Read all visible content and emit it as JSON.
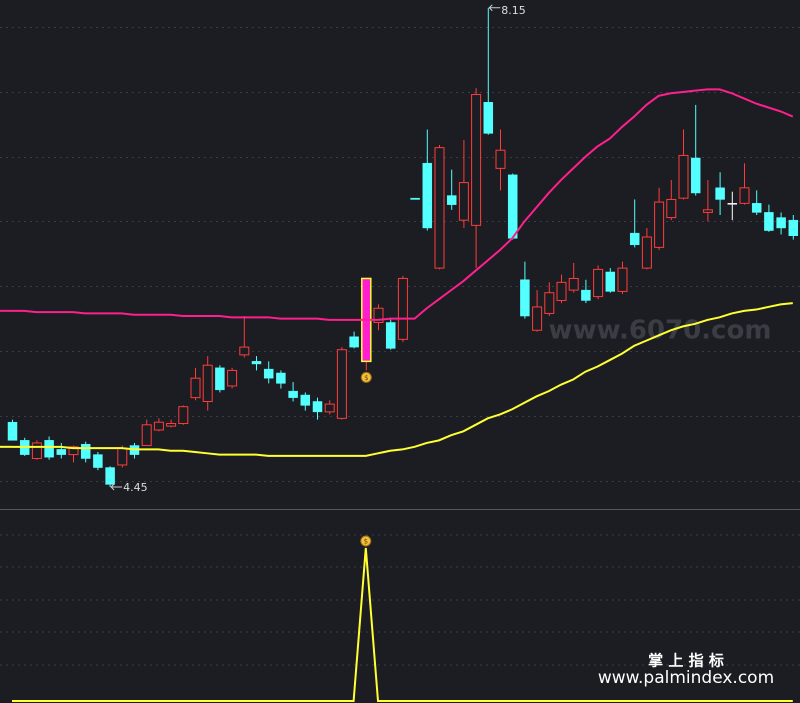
{
  "chart_data": {
    "type": "candlestick",
    "ylim": [
      4.28,
      8.21
    ],
    "gridlines": [
      4.5,
      5.0,
      5.5,
      6.0,
      6.5,
      7.0,
      7.5,
      8.0
    ],
    "up_color": "#ff3b3b",
    "down_color": "#54ffff",
    "ohlc": [
      [
        4.95,
        4.97,
        4.81,
        4.81
      ],
      [
        4.81,
        4.83,
        4.69,
        4.7
      ],
      [
        4.67,
        4.81,
        4.66,
        4.79
      ],
      [
        4.81,
        4.84,
        4.66,
        4.68
      ],
      [
        4.74,
        4.79,
        4.67,
        4.7
      ],
      [
        4.7,
        4.77,
        4.64,
        4.76
      ],
      [
        4.78,
        4.8,
        4.64,
        4.67
      ],
      [
        4.7,
        4.72,
        4.58,
        4.6
      ],
      [
        4.6,
        4.61,
        4.45,
        4.47
      ],
      [
        4.62,
        4.77,
        4.6,
        4.75
      ],
      [
        4.77,
        4.79,
        4.67,
        4.7
      ],
      [
        4.77,
        4.97,
        4.77,
        4.93
      ],
      [
        4.89,
        4.98,
        4.88,
        4.95
      ],
      [
        4.92,
        4.97,
        4.91,
        4.94
      ],
      [
        4.94,
        5.08,
        4.93,
        5.07
      ],
      [
        5.14,
        5.37,
        5.12,
        5.29
      ],
      [
        5.11,
        5.46,
        5.04,
        5.39
      ],
      [
        5.37,
        5.39,
        5.18,
        5.2
      ],
      [
        5.23,
        5.37,
        5.21,
        5.35
      ],
      [
        5.47,
        5.77,
        5.45,
        5.53
      ],
      [
        5.42,
        5.46,
        5.35,
        5.4
      ],
      [
        5.36,
        5.42,
        5.25,
        5.29
      ],
      [
        5.33,
        5.35,
        5.21,
        5.25
      ],
      [
        5.19,
        5.26,
        5.11,
        5.14
      ],
      [
        5.16,
        5.18,
        5.04,
        5.08
      ],
      [
        5.11,
        5.14,
        4.97,
        5.03
      ],
      [
        5.03,
        5.12,
        5.01,
        5.09
      ],
      [
        4.98,
        5.53,
        4.97,
        5.51
      ],
      [
        5.61,
        5.65,
        5.52,
        5.53
      ],
      [
        5.42,
        6.06,
        5.35,
        6.06
      ],
      [
        5.72,
        5.86,
        5.66,
        5.83
      ],
      [
        5.72,
        5.75,
        5.51,
        5.52
      ],
      [
        5.59,
        6.08,
        5.57,
        6.06
      ],
      [
        6.68,
        6.68,
        6.67,
        6.67
      ],
      [
        6.95,
        7.21,
        6.43,
        6.45
      ],
      [
        6.14,
        7.09,
        6.13,
        7.07
      ],
      [
        6.7,
        6.9,
        6.59,
        6.63
      ],
      [
        6.51,
        7.13,
        6.45,
        6.8
      ],
      [
        6.47,
        7.53,
        6.14,
        7.48
      ],
      [
        7.42,
        8.15,
        7.17,
        7.18
      ],
      [
        6.91,
        7.21,
        6.74,
        7.05
      ],
      [
        6.86,
        6.87,
        6.36,
        6.37
      ],
      [
        6.05,
        6.19,
        5.75,
        5.77
      ],
      [
        5.66,
        5.97,
        5.65,
        5.84
      ],
      [
        5.79,
        6.03,
        5.77,
        5.95
      ],
      [
        5.89,
        6.09,
        5.87,
        6.03
      ],
      [
        5.97,
        6.18,
        5.95,
        6.06
      ],
      [
        5.97,
        6.05,
        5.87,
        5.89
      ],
      [
        5.92,
        6.16,
        5.9,
        6.13
      ],
      [
        6.11,
        6.14,
        5.95,
        5.96
      ],
      [
        5.96,
        6.19,
        5.94,
        6.14
      ],
      [
        6.41,
        6.67,
        6.3,
        6.32
      ],
      [
        6.14,
        6.45,
        6.13,
        6.38
      ],
      [
        6.3,
        6.76,
        6.28,
        6.65
      ],
      [
        6.53,
        6.82,
        6.51,
        6.67
      ],
      [
        6.68,
        7.21,
        6.67,
        7.01
      ],
      [
        6.99,
        7.4,
        6.7,
        6.72
      ],
      [
        6.57,
        6.82,
        6.5,
        6.59
      ],
      [
        6.76,
        6.88,
        6.55,
        6.67
      ],
      [
        6.64,
        6.73,
        6.51,
        6.64
      ],
      [
        6.64,
        6.95,
        6.63,
        6.76
      ],
      [
        6.64,
        6.74,
        6.55,
        6.57
      ],
      [
        6.57,
        6.63,
        6.42,
        6.43
      ],
      [
        6.53,
        6.57,
        6.4,
        6.45
      ],
      [
        6.51,
        6.55,
        6.36,
        6.39
      ]
    ],
    "series": [
      {
        "color": "#ff1f8e",
        "values": [
          5.81,
          5.81,
          5.8,
          5.8,
          5.8,
          5.8,
          5.79,
          5.79,
          5.79,
          5.79,
          5.78,
          5.78,
          5.78,
          5.78,
          5.77,
          5.77,
          5.77,
          5.77,
          5.76,
          5.76,
          5.76,
          5.76,
          5.75,
          5.75,
          5.75,
          5.75,
          5.74,
          5.74,
          5.74,
          5.74,
          5.74,
          5.75,
          5.75,
          5.75,
          5.83,
          5.9,
          5.97,
          6.04,
          6.12,
          6.2,
          6.28,
          6.37,
          6.5,
          6.61,
          6.72,
          6.82,
          6.91,
          7.0,
          7.08,
          7.14,
          7.23,
          7.31,
          7.4,
          7.47,
          7.49,
          7.5,
          7.51,
          7.52,
          7.52,
          7.49,
          7.45,
          7.41,
          7.38,
          7.35,
          7.31
        ]
      },
      {
        "color": "#ffff33",
        "values": [
          4.76,
          4.76,
          4.76,
          4.76,
          4.76,
          4.75,
          4.75,
          4.75,
          4.75,
          4.75,
          4.74,
          4.74,
          4.74,
          4.73,
          4.73,
          4.72,
          4.71,
          4.7,
          4.7,
          4.7,
          4.7,
          4.69,
          4.69,
          4.69,
          4.69,
          4.69,
          4.69,
          4.69,
          4.69,
          4.69,
          4.71,
          4.73,
          4.74,
          4.76,
          4.79,
          4.81,
          4.85,
          4.88,
          4.93,
          4.98,
          5.01,
          5.05,
          5.1,
          5.15,
          5.19,
          5.24,
          5.28,
          5.34,
          5.38,
          5.43,
          5.48,
          5.54,
          5.58,
          5.62,
          5.66,
          5.69,
          5.71,
          5.74,
          5.76,
          5.79,
          5.81,
          5.82,
          5.84,
          5.86,
          5.87
        ]
      }
    ],
    "annotations": [
      {
        "value": 8.15,
        "label": "8.15"
      },
      {
        "value": 4.45,
        "label": "4.45"
      }
    ],
    "indicator": {
      "color": "#ffff33",
      "ylim": [
        0,
        1
      ],
      "values": [
        0,
        0,
        0,
        0,
        0,
        0,
        0,
        0,
        0,
        0,
        0,
        0,
        0,
        0,
        0,
        0,
        0,
        0,
        0,
        0,
        0,
        0,
        0,
        0,
        0,
        0,
        0,
        0,
        0,
        1,
        0,
        0,
        0,
        0,
        0,
        0,
        0,
        0,
        0,
        0,
        0,
        0,
        0,
        0,
        0,
        0,
        0,
        0,
        0,
        0,
        0,
        0,
        0,
        0,
        0,
        0,
        0,
        0,
        0,
        0,
        0,
        0,
        0,
        0,
        0
      ]
    },
    "watermarks": [
      "www.6070.com",
      "掌 上 指 标",
      "www.palmindex.com"
    ]
  }
}
